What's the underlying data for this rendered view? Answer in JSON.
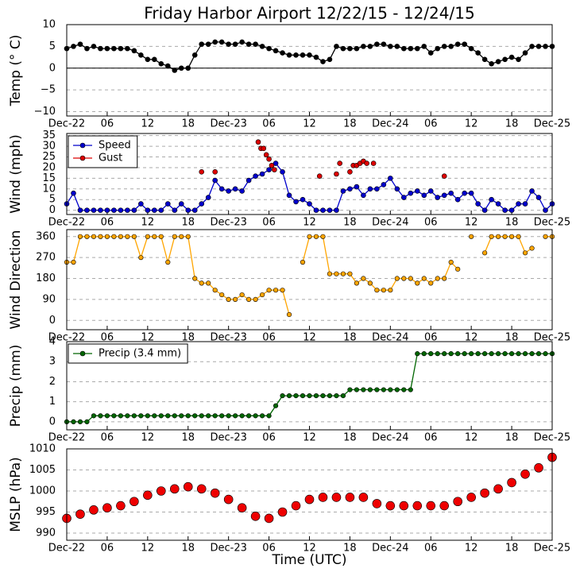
{
  "chart_data": [
    {
      "type": "line",
      "title": "Friday Harbor Airport 12/22/15 - 12/24/15",
      "ylabel": "Temp (° C)",
      "grid": true,
      "zero_line": true,
      "xlim": [
        0,
        72
      ],
      "xticks": [
        {
          "value": 0,
          "label": "Dec-22"
        },
        {
          "value": 6,
          "label": "06"
        },
        12,
        18,
        {
          "value": 24,
          "label": "Dec-23"
        },
        {
          "value": 30,
          "label": "06"
        },
        {
          "value": 36,
          "label": "12"
        },
        {
          "value": 42,
          "label": "18"
        },
        {
          "value": 48,
          "label": "Dec-24"
        },
        {
          "value": 54,
          "label": "06"
        },
        {
          "value": 60,
          "label": "12"
        },
        {
          "value": 66,
          "label": "18"
        },
        {
          "value": 72,
          "label": "Dec-25"
        }
      ],
      "ylim": [
        -11,
        10
      ],
      "yticks": [
        {
          "value": -10,
          "label": "−10"
        },
        {
          "value": -5,
          "label": "−5"
        },
        0,
        5,
        10
      ],
      "x": [
        0,
        1,
        2,
        3,
        4,
        5,
        6,
        7,
        8,
        9,
        10,
        11,
        12,
        13,
        14,
        15,
        16,
        17,
        18,
        19,
        20,
        21,
        22,
        23,
        24,
        25,
        26,
        27,
        28,
        29,
        30,
        31,
        32,
        33,
        34,
        35,
        36,
        37,
        38,
        39,
        40,
        41,
        42,
        43,
        44,
        45,
        46,
        47,
        48,
        49,
        50,
        51,
        52,
        53,
        54,
        55,
        56,
        57,
        58,
        59,
        60,
        61,
        62,
        63,
        64,
        65,
        66,
        67,
        68,
        69,
        70,
        71,
        72
      ],
      "series": [
        {
          "color": "#000000",
          "values": [
            4.5,
            5,
            5.5,
            4.5,
            5,
            4.5,
            4.5,
            4.5,
            4.5,
            4.5,
            4,
            3,
            2,
            2,
            1,
            0.5,
            -0.5,
            0,
            0,
            3,
            5.5,
            5.5,
            6,
            6,
            5.5,
            5.5,
            6,
            5.5,
            5.5,
            5,
            4.5,
            4,
            3.5,
            3,
            3,
            3,
            3,
            2.5,
            1.5,
            2,
            5,
            4.5,
            4.5,
            4.5,
            5,
            5,
            5.5,
            5.5,
            5,
            5,
            4.5,
            4.5,
            4.5,
            5,
            3.5,
            4.5,
            5,
            5,
            5.5,
            5.5,
            4.5,
            3.5,
            2,
            1,
            1.5,
            2,
            2.5,
            2,
            3.5,
            5,
            5,
            5,
            5
          ]
        }
      ]
    },
    {
      "type": "line",
      "ylabel": "Wind (mph)",
      "grid": true,
      "legend": "upper left",
      "xlim": [
        0,
        72
      ],
      "xticks": [
        {
          "value": 0,
          "label": "Dec-22"
        },
        {
          "value": 6,
          "label": "06"
        },
        12,
        18,
        {
          "value": 24,
          "label": "Dec-23"
        },
        {
          "value": 30,
          "label": "06"
        },
        {
          "value": 36,
          "label": "12"
        },
        {
          "value": 42,
          "label": "18"
        },
        {
          "value": 48,
          "label": "Dec-24"
        },
        {
          "value": 54,
          "label": "06"
        },
        {
          "value": 60,
          "label": "12"
        },
        {
          "value": 66,
          "label": "18"
        },
        {
          "value": 72,
          "label": "Dec-25"
        }
      ],
      "ylim": [
        -2,
        36
      ],
      "yticks": [
        0,
        5,
        10,
        15,
        20,
        25,
        30,
        35
      ],
      "x": [
        0,
        1,
        2,
        3,
        4,
        5,
        6,
        7,
        8,
        9,
        10,
        11,
        12,
        13,
        14,
        15,
        16,
        17,
        18,
        19,
        20,
        21,
        22,
        23,
        24,
        25,
        26,
        27,
        28,
        29,
        30,
        31,
        32,
        33,
        34,
        35,
        36,
        37,
        38,
        39,
        40,
        41,
        42,
        43,
        44,
        45,
        46,
        47,
        48,
        49,
        50,
        51,
        52,
        53,
        54,
        55,
        56,
        57,
        58,
        59,
        60,
        61,
        62,
        63,
        64,
        65,
        66,
        67,
        68,
        69,
        70,
        71,
        72
      ],
      "series": [
        {
          "name": "Speed",
          "color": "#0000cc",
          "values": [
            3,
            8,
            0,
            0,
            0,
            0,
            0,
            0,
            0,
            0,
            0,
            3,
            0,
            0,
            0,
            3,
            0,
            3,
            0,
            0,
            3,
            6,
            14,
            10,
            9,
            10,
            9,
            14,
            16,
            17,
            19,
            22,
            18,
            7,
            4,
            5,
            3,
            0,
            0,
            0,
            0,
            9,
            10,
            11,
            7,
            10,
            10,
            12,
            15,
            10,
            6,
            8,
            9,
            7,
            9,
            6,
            7,
            8,
            5,
            8,
            8,
            3,
            0,
            5,
            3,
            0,
            0,
            3,
            3,
            9,
            6,
            0,
            3
          ]
        },
        {
          "name": "Gust",
          "color": "#dd0000",
          "line": false,
          "x": [
            20,
            22,
            28.4,
            28.8,
            29.2,
            29.6,
            30,
            30.4,
            30.8,
            37.5,
            40,
            40.5,
            42,
            42.5,
            43,
            43.5,
            44,
            44.5,
            45.5,
            56
          ],
          "values": [
            18,
            18,
            32,
            29,
            29,
            26,
            24,
            21,
            19,
            16,
            17,
            22,
            18,
            21,
            21,
            22,
            23,
            22,
            22,
            16
          ]
        }
      ]
    },
    {
      "type": "line",
      "ylabel": "Wind Direction",
      "grid": true,
      "xlim": [
        0,
        72
      ],
      "xticks": [
        {
          "value": 0,
          "label": "Dec-22"
        },
        {
          "value": 6,
          "label": "06"
        },
        12,
        18,
        {
          "value": 24,
          "label": "Dec-23"
        },
        {
          "value": 30,
          "label": "06"
        },
        {
          "value": 36,
          "label": "12"
        },
        {
          "value": 42,
          "label": "18"
        },
        {
          "value": 48,
          "label": "Dec-24"
        },
        {
          "value": 54,
          "label": "06"
        },
        {
          "value": 60,
          "label": "12"
        },
        {
          "value": 66,
          "label": "18"
        },
        {
          "value": 72,
          "label": "Dec-25"
        }
      ],
      "ylim": [
        -40,
        390
      ],
      "yticks": [
        0,
        90,
        180,
        270,
        360
      ],
      "x": [
        0,
        1,
        2,
        3,
        4,
        5,
        6,
        7,
        8,
        9,
        10,
        11,
        12,
        13,
        14,
        15,
        16,
        17,
        18,
        19,
        20,
        21,
        22,
        23,
        24,
        25,
        26,
        27,
        28,
        29,
        30,
        31,
        32,
        33,
        34,
        35,
        36,
        37,
        38,
        39,
        40,
        41,
        42,
        43,
        44,
        45,
        46,
        47,
        48,
        49,
        50,
        51,
        52,
        53,
        54,
        55,
        56,
        57,
        58,
        59,
        60,
        61,
        62,
        63,
        64,
        65,
        66,
        67,
        68,
        69,
        70,
        71,
        72
      ],
      "series": [
        {
          "color": "#ffa500",
          "values": [
            250,
            250,
            360,
            360,
            360,
            360,
            360,
            360,
            360,
            360,
            360,
            270,
            360,
            360,
            360,
            250,
            360,
            360,
            360,
            180,
            160,
            160,
            130,
            110,
            90,
            90,
            110,
            90,
            90,
            110,
            130,
            130,
            130,
            25,
            null,
            250,
            360,
            360,
            360,
            200,
            200,
            200,
            200,
            160,
            180,
            160,
            130,
            130,
            130,
            180,
            180,
            180,
            160,
            180,
            160,
            180,
            180,
            250,
            220,
            null,
            360,
            null,
            290,
            360,
            360,
            360,
            360,
            360,
            290,
            310,
            null,
            360,
            360
          ]
        }
      ]
    },
    {
      "type": "line",
      "ylabel": "Precip (mm)",
      "grid": true,
      "legend": "upper left",
      "xlim": [
        0,
        72
      ],
      "xticks": [
        {
          "value": 0,
          "label": "Dec-22"
        },
        {
          "value": 6,
          "label": "06"
        },
        12,
        18,
        {
          "value": 24,
          "label": "Dec-23"
        },
        {
          "value": 30,
          "label": "06"
        },
        {
          "value": 36,
          "label": "12"
        },
        {
          "value": 42,
          "label": "18"
        },
        {
          "value": 48,
          "label": "Dec-24"
        },
        {
          "value": 54,
          "label": "06"
        },
        {
          "value": 60,
          "label": "12"
        },
        {
          "value": 66,
          "label": "18"
        },
        {
          "value": 72,
          "label": "Dec-25"
        }
      ],
      "ylim": [
        -0.4,
        4
      ],
      "yticks": [
        0,
        1,
        2,
        3,
        4
      ],
      "x": [
        0,
        1,
        2,
        3,
        4,
        5,
        6,
        7,
        8,
        9,
        10,
        11,
        12,
        13,
        14,
        15,
        16,
        17,
        18,
        19,
        20,
        21,
        22,
        23,
        24,
        25,
        26,
        27,
        28,
        29,
        30,
        31,
        32,
        33,
        34,
        35,
        36,
        37,
        38,
        39,
        40,
        41,
        42,
        43,
        44,
        45,
        46,
        47,
        48,
        49,
        50,
        51,
        52,
        53,
        54,
        55,
        56,
        57,
        58,
        59,
        60,
        61,
        62,
        63,
        64,
        65,
        66,
        67,
        68,
        69,
        70,
        71,
        72
      ],
      "series": [
        {
          "name": "Precip (3.4 mm)",
          "color": "#006600",
          "values": [
            0,
            0,
            0,
            0,
            0.3,
            0.3,
            0.3,
            0.3,
            0.3,
            0.3,
            0.3,
            0.3,
            0.3,
            0.3,
            0.3,
            0.3,
            0.3,
            0.3,
            0.3,
            0.3,
            0.3,
            0.3,
            0.3,
            0.3,
            0.3,
            0.3,
            0.3,
            0.3,
            0.3,
            0.3,
            0.3,
            0.8,
            1.3,
            1.3,
            1.3,
            1.3,
            1.3,
            1.3,
            1.3,
            1.3,
            1.3,
            1.3,
            1.6,
            1.6,
            1.6,
            1.6,
            1.6,
            1.6,
            1.6,
            1.6,
            1.6,
            1.6,
            3.4,
            3.4,
            3.4,
            3.4,
            3.4,
            3.4,
            3.4,
            3.4,
            3.4,
            3.4,
            3.4,
            3.4,
            3.4,
            3.4,
            3.4,
            3.4,
            3.4,
            3.4,
            3.4,
            3.4,
            3.4
          ]
        }
      ]
    },
    {
      "type": "line",
      "ylabel": "MSLP (hPa)",
      "xlabel": "Time (UTC)",
      "grid": true,
      "xlim": [
        0,
        72
      ],
      "xticks": [
        {
          "value": 0,
          "label": "Dec-22"
        },
        {
          "value": 6,
          "label": "06"
        },
        12,
        18,
        {
          "value": 24,
          "label": "Dec-23"
        },
        {
          "value": 30,
          "label": "06"
        },
        {
          "value": 36,
          "label": "12"
        },
        {
          "value": 42,
          "label": "18"
        },
        {
          "value": 48,
          "label": "Dec-24"
        },
        {
          "value": 54,
          "label": "06"
        },
        {
          "value": 60,
          "label": "12"
        },
        {
          "value": 66,
          "label": "18"
        },
        {
          "value": 72,
          "label": "Dec-25"
        }
      ],
      "ylim": [
        988.3,
        1010
      ],
      "yticks": [
        990,
        995,
        1000,
        1005,
        1010
      ],
      "x": [
        0,
        2,
        4,
        6,
        8,
        10,
        12,
        14,
        16,
        18,
        20,
        22,
        24,
        26,
        28,
        30,
        32,
        34,
        36,
        38,
        40,
        42,
        44,
        46,
        48,
        50,
        52,
        54,
        56,
        58,
        60,
        62,
        64,
        66,
        68,
        70,
        72
      ],
      "series": [
        {
          "color": "#ee0000",
          "line": false,
          "values": [
            993.5,
            994.5,
            995.5,
            996,
            996.5,
            997.5,
            999,
            1000,
            1000.5,
            1001,
            1000.5,
            999.5,
            998,
            996,
            994,
            993.5,
            995,
            996.5,
            998,
            998.5,
            998.5,
            998.5,
            998.5,
            997,
            996.5,
            996.5,
            996.5,
            996.5,
            996.5,
            997.5,
            998.5,
            999.5,
            1000.5,
            1002,
            1004,
            1005.5,
            1008
          ]
        }
      ]
    }
  ]
}
